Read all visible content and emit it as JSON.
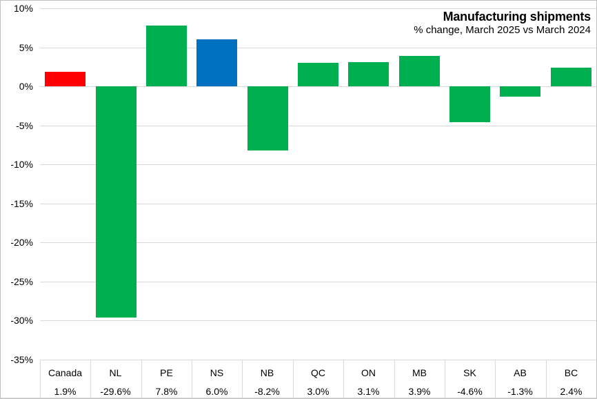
{
  "chart_data": {
    "type": "bar",
    "title": "Manufacturing shipments",
    "subtitle": "% change, March 2025 vs March 2024",
    "categories": [
      "Canada",
      "NL",
      "PE",
      "NS",
      "NB",
      "QC",
      "ON",
      "MB",
      "SK",
      "AB",
      "BC"
    ],
    "values": [
      1.9,
      -29.6,
      7.8,
      6.0,
      -8.2,
      3.0,
      3.1,
      3.9,
      -4.6,
      -1.3,
      2.4
    ],
    "value_labels": [
      "1.9%",
      "-29.6%",
      "7.8%",
      "6.0%",
      "-8.2%",
      "3.0%",
      "3.1%",
      "3.9%",
      "-4.6%",
      "-1.3%",
      "2.4%"
    ],
    "bar_colors": [
      "#ff0000",
      "#00b050",
      "#00b050",
      "#0070c0",
      "#00b050",
      "#00b050",
      "#00b050",
      "#00b050",
      "#00b050",
      "#00b050",
      "#00b050"
    ],
    "yticks": [
      10,
      5,
      0,
      -5,
      -10,
      -15,
      -20,
      -25,
      -30,
      -35
    ],
    "ytick_labels": [
      "10%",
      "5%",
      "0%",
      "-5%",
      "-10%",
      "-15%",
      "-20%",
      "-25%",
      "-30%",
      "-35%"
    ],
    "ylim": [
      -35,
      10
    ],
    "grid": true,
    "legend": "none",
    "colors": {
      "canada_bar": "#ff0000",
      "highlight_bar": "#0070c0",
      "province_bar": "#00b050",
      "gridline": "#d9d9d9",
      "text": "#000000",
      "chart_border": "#bfbfbf",
      "background": "#ffffff"
    }
  }
}
